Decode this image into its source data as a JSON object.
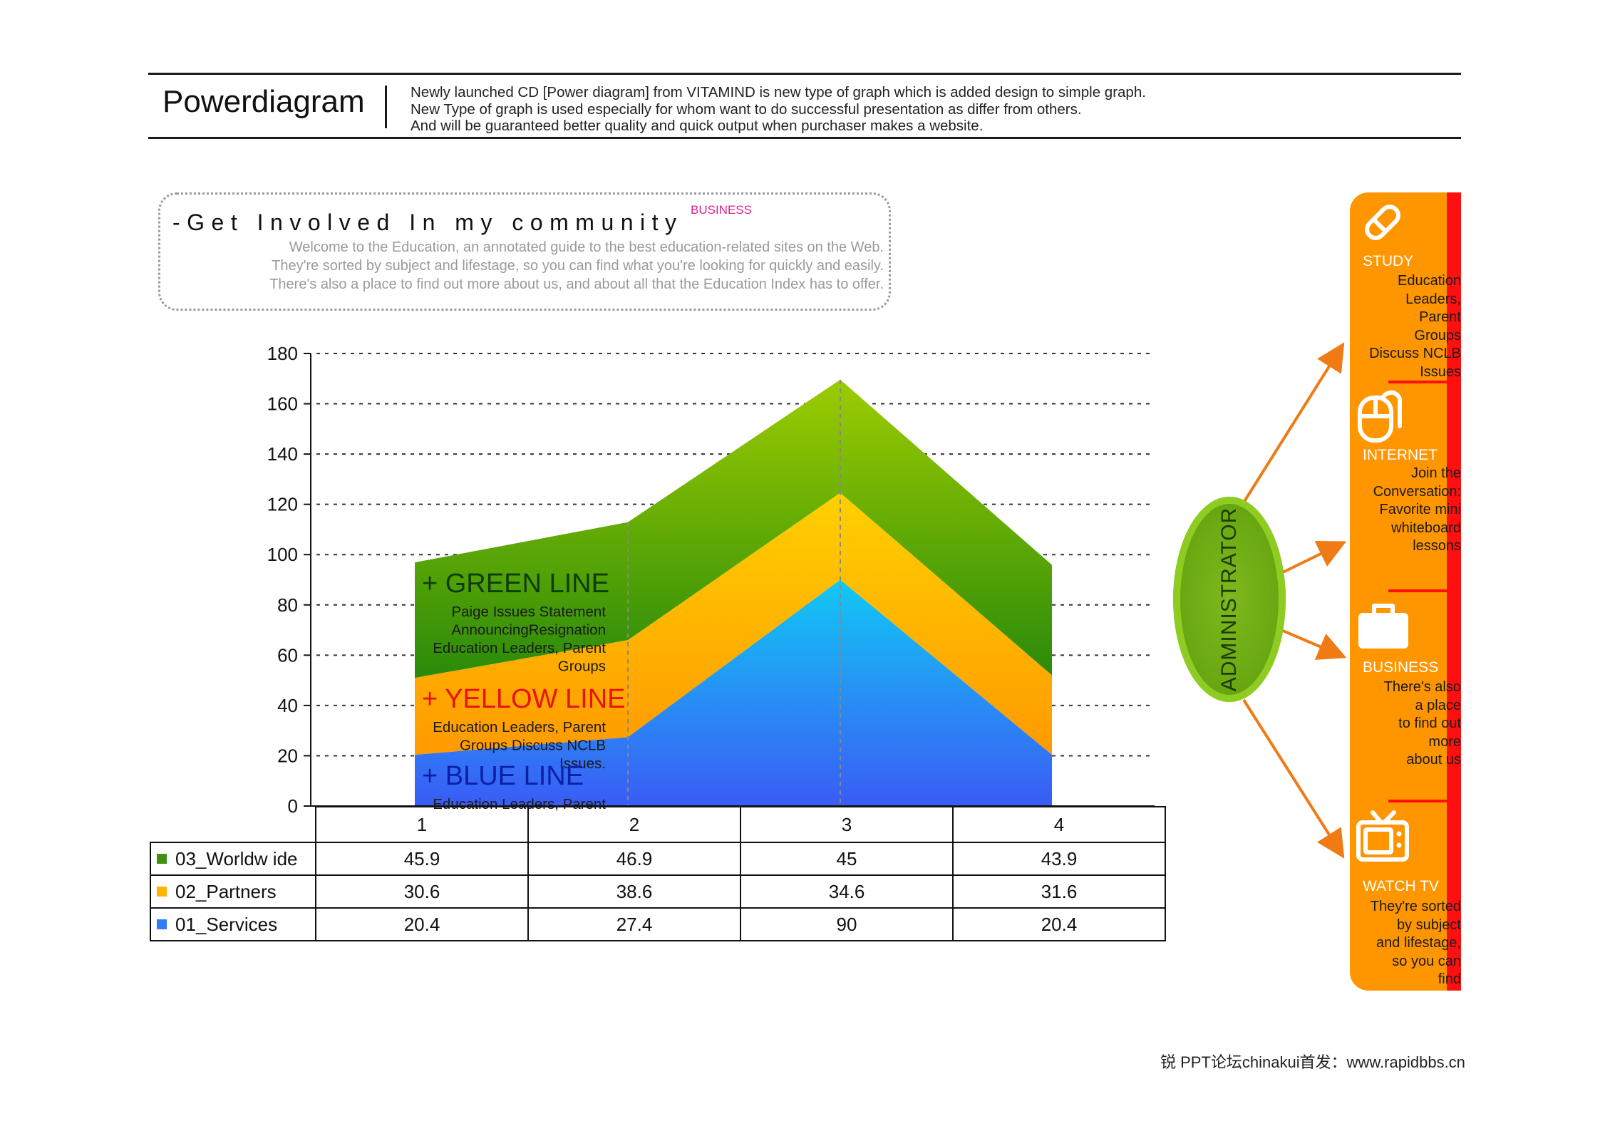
{
  "header": {
    "title": "Powerdiagram",
    "description": [
      "Newly launched CD [Power diagram] from VITAMIND is new type of graph which is added design to simple graph.",
      "New Type of graph is used especially for whom want to do successful presentation as differ from others.",
      "And will be guaranteed better quality and quick output when purchaser makes a website."
    ]
  },
  "intro": {
    "title": "-Get Involved In my community",
    "tag": "BUSINESS",
    "lines": [
      "Welcome to the Education, an annotated guide to the best education-related sites on the Web.",
      "They're sorted by subject and lifestage, so you can find what you're looking for quickly and easily.",
      "There's also a place to find out more about us, and about all that the Education Index has to offer."
    ]
  },
  "chart_data": {
    "type": "area",
    "stacked": true,
    "categories": [
      "1",
      "2",
      "3",
      "4"
    ],
    "ylim": [
      0,
      180
    ],
    "yticks": [
      0,
      20,
      40,
      60,
      80,
      100,
      120,
      140,
      160,
      180
    ],
    "grid": "horizontal dotted",
    "series": [
      {
        "name": "01_Services",
        "values": [
          20.4,
          27.4,
          90,
          20.4
        ],
        "color": "#2f7df7"
      },
      {
        "name": "02_Partners",
        "values": [
          30.6,
          38.6,
          34.6,
          31.6
        ],
        "color": "#ffb400"
      },
      {
        "name": "03_Worldw ide",
        "values": [
          45.9,
          46.9,
          45,
          43.9
        ],
        "color": "#5aa70e"
      }
    ],
    "annotations": [
      {
        "series": "03_Worldw ide",
        "heading": "+ GREEN LINE",
        "heading_color": "#0f3d0a",
        "text": [
          "Paige Issues Statement",
          "AnnouncingResignation",
          "Education Leaders, Parent",
          "Groups"
        ]
      },
      {
        "series": "02_Partners",
        "heading": "+ YELLOW LINE",
        "heading_color": "#e8120e",
        "text": [
          "Education Leaders, Parent",
          "Groups Discuss NCLB",
          "Issues."
        ]
      },
      {
        "series": "01_Services",
        "heading": "+ BLUE LINE",
        "heading_color": "#0c1fa8",
        "text": [
          "Education Leaders, Parent"
        ]
      }
    ]
  },
  "table": {
    "rows": [
      {
        "label": "03_Worldw ide",
        "color": "#3f8f10",
        "values": [
          "45.9",
          "46.9",
          "45",
          "43.9"
        ]
      },
      {
        "label": "02_Partners",
        "color": "#ffb400",
        "values": [
          "30.6",
          "38.6",
          "34.6",
          "31.6"
        ]
      },
      {
        "label": "01_Services",
        "color": "#2f7df7",
        "values": [
          "20.4",
          "27.4",
          "90",
          "20.4"
        ]
      }
    ]
  },
  "administrator": {
    "label": "ADMINISTRATOR"
  },
  "panel": {
    "items": [
      {
        "icon": "pencil-icon",
        "heading": "STUDY",
        "text": "Education\nLeaders,\nParent\nGroups\nDiscuss NCLB\nIssues"
      },
      {
        "icon": "mouse-icon",
        "heading": "INTERNET",
        "text": "Join the\nConversation:\nFavorite mini\nwhiteboard\nlessons"
      },
      {
        "icon": "briefcase-icon",
        "heading": "BUSINESS",
        "text": "There's also\na place\nto find out\nmore\nabout us"
      },
      {
        "icon": "tv-icon",
        "heading": "WATCH TV",
        "text": "They're sorted\nby subject\nand lifestage,\nso you can\nfind"
      }
    ]
  },
  "colors": {
    "panel_orange": "#ff9600",
    "panel_red": "#ff1010",
    "arrow_orange": "#f07a14",
    "admin_green": "#6aa812"
  },
  "footer": {
    "text": "锐 PPT论坛chinakui首发：www.rapidbbs.cn"
  }
}
